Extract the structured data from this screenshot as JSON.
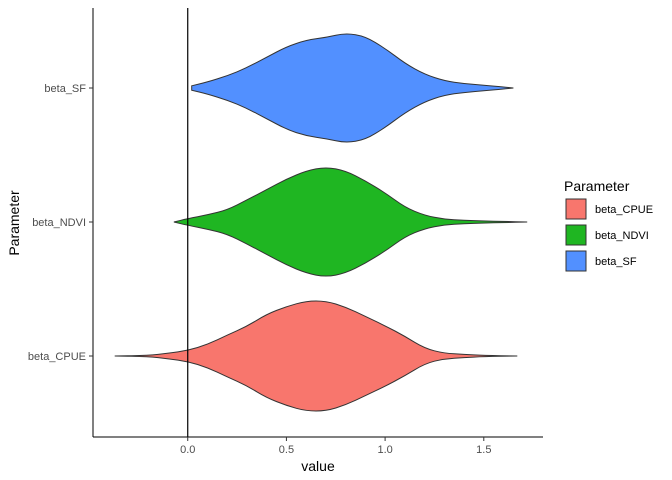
{
  "chart_data": {
    "type": "violin",
    "orientation": "horizontal",
    "xlabel": "value",
    "ylabel": "Parameter",
    "xlim": [
      -0.48,
      1.8
    ],
    "x_ticks": [
      {
        "value": 0.0,
        "label": "0.0"
      },
      {
        "value": 0.5,
        "label": "0.5"
      },
      {
        "value": 1.0,
        "label": "1.0"
      },
      {
        "value": 1.5,
        "label": "1.5"
      }
    ],
    "reference_line": {
      "x": 0.0,
      "color": "#000000"
    },
    "grid": false,
    "legend": {
      "title": "Parameter",
      "position": "right",
      "entries": [
        {
          "label": "beta_CPUE",
          "color": "#F8766D"
        },
        {
          "label": "beta_NDVI",
          "color": "#1FB622"
        },
        {
          "label": "beta_SF",
          "color": "#5290FF"
        }
      ]
    },
    "series": [
      {
        "name": "beta_SF",
        "color": "#5290FF",
        "density": [
          [
            0.02,
            0.04
          ],
          [
            0.1,
            0.11
          ],
          [
            0.2,
            0.22
          ],
          [
            0.3,
            0.37
          ],
          [
            0.4,
            0.56
          ],
          [
            0.5,
            0.75
          ],
          [
            0.6,
            0.87
          ],
          [
            0.7,
            0.92
          ],
          [
            0.8,
            1.0
          ],
          [
            0.9,
            0.94
          ],
          [
            1.0,
            0.72
          ],
          [
            1.1,
            0.45
          ],
          [
            1.2,
            0.25
          ],
          [
            1.3,
            0.13
          ],
          [
            1.4,
            0.08
          ],
          [
            1.5,
            0.05
          ],
          [
            1.6,
            0.02
          ],
          [
            1.65,
            0.0
          ]
        ]
      },
      {
        "name": "beta_NDVI",
        "color": "#1FB622",
        "density": [
          [
            -0.07,
            0.0
          ],
          [
            0.0,
            0.06
          ],
          [
            0.1,
            0.13
          ],
          [
            0.2,
            0.22
          ],
          [
            0.3,
            0.4
          ],
          [
            0.4,
            0.59
          ],
          [
            0.5,
            0.78
          ],
          [
            0.6,
            0.93
          ],
          [
            0.7,
            1.0
          ],
          [
            0.8,
            0.93
          ],
          [
            0.9,
            0.75
          ],
          [
            1.0,
            0.53
          ],
          [
            1.1,
            0.27
          ],
          [
            1.2,
            0.12
          ],
          [
            1.3,
            0.05
          ],
          [
            1.4,
            0.03
          ],
          [
            1.5,
            0.02
          ],
          [
            1.6,
            0.01
          ],
          [
            1.72,
            0.0
          ]
        ]
      },
      {
        "name": "beta_CPUE",
        "color": "#F8766D",
        "density": [
          [
            -0.37,
            0.0
          ],
          [
            -0.2,
            0.01
          ],
          [
            -0.1,
            0.05
          ],
          [
            0.0,
            0.1
          ],
          [
            0.1,
            0.21
          ],
          [
            0.2,
            0.38
          ],
          [
            0.3,
            0.54
          ],
          [
            0.4,
            0.76
          ],
          [
            0.5,
            0.9
          ],
          [
            0.6,
            1.0
          ],
          [
            0.7,
            1.0
          ],
          [
            0.8,
            0.89
          ],
          [
            0.9,
            0.72
          ],
          [
            1.0,
            0.55
          ],
          [
            1.1,
            0.36
          ],
          [
            1.2,
            0.14
          ],
          [
            1.3,
            0.05
          ],
          [
            1.4,
            0.03
          ],
          [
            1.5,
            0.01
          ],
          [
            1.67,
            0.0
          ]
        ]
      }
    ]
  }
}
